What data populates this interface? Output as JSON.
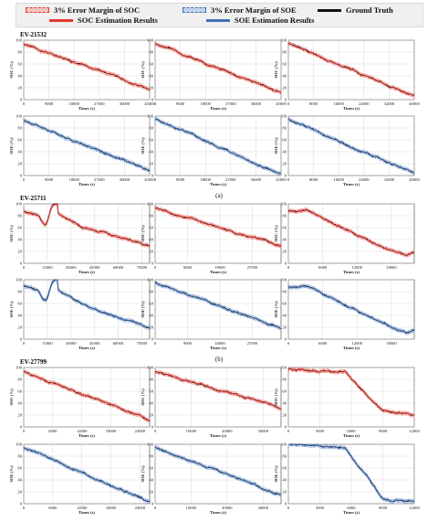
{
  "legend": {
    "soc_margin": "3% Error Margin of SOC",
    "soe_margin": "3% Error Margin of SOE",
    "ground_truth": "Ground Truth",
    "soc_est": "SOC Estimation Results",
    "soe_est": "SOE Estimation Results"
  },
  "colors": {
    "soc": "#e8372d",
    "soe": "#3f6fb5",
    "truth": "#111111",
    "soc_band": "#f6c3bf",
    "soe_band": "#c4d4ec"
  },
  "groups": [
    {
      "label": "EV-21532",
      "sublabel": "(a)"
    },
    {
      "label": "EV-25711",
      "sublabel": "(b)"
    },
    {
      "label": "EV-27799",
      "sublabel": ""
    }
  ],
  "chart_data": [
    {
      "type": "line",
      "group": 0,
      "row": "SOC",
      "ylabel": "SOC (%)",
      "xlabel": "Times (s)",
      "ylim": [
        0,
        100
      ],
      "yticks": [
        0,
        20,
        40,
        60,
        80,
        100
      ],
      "xticks": [
        0,
        9000,
        18000,
        27000,
        36000,
        45000
      ],
      "xticklabels": [
        "0",
        "9000",
        "18000",
        "27000",
        "36000",
        "45000"
      ],
      "xmax": 45000,
      "shape": "linear",
      "start": 93,
      "end": 18,
      "seed": 1
    },
    {
      "type": "line",
      "group": 0,
      "row": "SOC",
      "ylabel": "SOC (%)",
      "xlabel": "Times (s)",
      "ylim": [
        0,
        100
      ],
      "yticks": [
        0,
        20,
        40,
        60,
        80,
        100
      ],
      "xticks": [
        0,
        9000,
        18000,
        27000,
        36000,
        45000
      ],
      "xticklabels": [
        "0",
        "9000",
        "18000",
        "27000",
        "36000",
        "45000"
      ],
      "xmax": 45000,
      "shape": "linear",
      "start": 95,
      "end": 12,
      "seed": 2
    },
    {
      "type": "line",
      "group": 0,
      "row": "SOC",
      "ylabel": "SOC (%)",
      "xlabel": "Times (s)",
      "ylim": [
        0,
        100
      ],
      "yticks": [
        0,
        20,
        40,
        60,
        80,
        100
      ],
      "xticks": [
        0,
        8000,
        16000,
        24000,
        32000,
        40000
      ],
      "xticklabels": [
        "0",
        "8000",
        "16000",
        "24000",
        "32000",
        "40000"
      ],
      "xmax": 40000,
      "shape": "linear",
      "start": 95,
      "end": 5,
      "seed": 3
    },
    {
      "type": "line",
      "group": 0,
      "row": "SOE",
      "ylabel": "SOE (%)",
      "xlabel": "Times (s)",
      "ylim": [
        0,
        100
      ],
      "yticks": [
        0,
        20,
        40,
        60,
        80,
        100
      ],
      "xticks": [
        0,
        9000,
        18000,
        27000,
        36000,
        45000
      ],
      "xticklabels": [
        "0",
        "9000",
        "18000",
        "27000",
        "36000",
        "45000"
      ],
      "xmax": 45000,
      "shape": "linear",
      "start": 93,
      "end": 8,
      "seed": 4
    },
    {
      "type": "line",
      "group": 0,
      "row": "SOE",
      "ylabel": "SOE (%)",
      "xlabel": "Times (s)",
      "ylim": [
        0,
        100
      ],
      "yticks": [
        0,
        20,
        40,
        60,
        80,
        100
      ],
      "xticks": [
        0,
        9000,
        18000,
        27000,
        36000,
        45000
      ],
      "xticklabels": [
        "0",
        "9000",
        "18000",
        "27000",
        "36000",
        "45000"
      ],
      "xmax": 45000,
      "shape": "linear",
      "start": 95,
      "end": 2,
      "seed": 5
    },
    {
      "type": "line",
      "group": 0,
      "row": "SOE",
      "ylabel": "SOE (%)",
      "xlabel": "Times (s)",
      "ylim": [
        0,
        100
      ],
      "yticks": [
        0,
        20,
        40,
        60,
        80,
        100
      ],
      "xticks": [
        0,
        8000,
        16000,
        24000,
        32000,
        40000
      ],
      "xticklabels": [
        "0",
        "8000",
        "16000",
        "24000",
        "32000",
        "40000"
      ],
      "xmax": 40000,
      "shape": "linear",
      "start": 95,
      "end": 3,
      "seed": 6
    },
    {
      "type": "line",
      "group": 1,
      "row": "SOC",
      "ylabel": "SOC (%)",
      "xlabel": "Times (s)",
      "ylim": [
        0,
        100
      ],
      "yticks": [
        0,
        20,
        40,
        60,
        80,
        100
      ],
      "xticks": [
        0,
        15000,
        30000,
        45000,
        60000,
        75000
      ],
      "xticklabels": [
        "0",
        "15000",
        "30000",
        "45000",
        "60000",
        "75000"
      ],
      "xmax": 80000,
      "shape": "bump",
      "start": 88,
      "end": 30,
      "seed": 7
    },
    {
      "type": "line",
      "group": 1,
      "row": "SOC",
      "ylabel": "SOC (%)",
      "xlabel": "Times (s)",
      "ylim": [
        0,
        100
      ],
      "yticks": [
        0,
        20,
        40,
        60,
        80,
        100
      ],
      "xticks": [
        0,
        9000,
        18000,
        27000
      ],
      "xticklabels": [
        "0",
        "9000",
        "18000",
        "27000"
      ],
      "xmax": 35000,
      "shape": "linear",
      "start": 93,
      "end": 28,
      "seed": 8
    },
    {
      "type": "line",
      "group": 1,
      "row": "SOC",
      "ylabel": "SOC (%)",
      "xlabel": "Times (s)",
      "ylim": [
        0,
        100
      ],
      "yticks": [
        0,
        20,
        40,
        60,
        80,
        100
      ],
      "xticks": [
        0,
        6000,
        12000,
        18000
      ],
      "xticklabels": [
        "0",
        "6000",
        "12000",
        "18000"
      ],
      "xmax": 22000,
      "shape": "dip",
      "start": 88,
      "end": 10,
      "seed": 9
    },
    {
      "type": "line",
      "group": 1,
      "row": "SOE",
      "ylabel": "SOE (%)",
      "xlabel": "Times (s)",
      "ylim": [
        0,
        100
      ],
      "yticks": [
        0,
        20,
        40,
        60,
        80,
        100
      ],
      "xticks": [
        0,
        15000,
        30000,
        45000,
        60000,
        75000
      ],
      "xticklabels": [
        "0",
        "15000",
        "30000",
        "45000",
        "60000",
        "75000"
      ],
      "xmax": 80000,
      "shape": "bump",
      "start": 90,
      "end": 20,
      "seed": 10
    },
    {
      "type": "line",
      "group": 1,
      "row": "SOE",
      "ylabel": "SOE (%)",
      "xlabel": "Times (s)",
      "ylim": [
        0,
        100
      ],
      "yticks": [
        0,
        20,
        40,
        60,
        80,
        100
      ],
      "xticks": [
        0,
        9000,
        18000,
        27000
      ],
      "xticklabels": [
        "0",
        "9000",
        "18000",
        "27000"
      ],
      "xmax": 35000,
      "shape": "linear",
      "start": 95,
      "end": 18,
      "seed": 11
    },
    {
      "type": "line",
      "group": 1,
      "row": "SOE",
      "ylabel": "SOE (%)",
      "xlabel": "Times (s)",
      "ylim": [
        0,
        100
      ],
      "yticks": [
        0,
        20,
        40,
        60,
        80,
        100
      ],
      "xticks": [
        0,
        6000,
        12000,
        18000
      ],
      "xticklabels": [
        "0",
        "6000",
        "12000",
        "18000"
      ],
      "xmax": 22000,
      "shape": "dip",
      "start": 88,
      "end": 5,
      "seed": 12
    },
    {
      "type": "line",
      "group": 2,
      "row": "SOC",
      "ylabel": "SOC (%)",
      "xlabel": "Times (s)",
      "ylim": [
        0,
        100
      ],
      "yticks": [
        0,
        20,
        40,
        60,
        80,
        100
      ],
      "xticks": [
        0,
        6000,
        12000,
        18000,
        24000
      ],
      "xticklabels": [
        "0",
        "6000",
        "12000",
        "18000",
        "24000"
      ],
      "xmax": 26000,
      "shape": "linear",
      "start": 93,
      "end": 12,
      "seed": 13
    },
    {
      "type": "line",
      "group": 2,
      "row": "SOC",
      "ylabel": "SOC (%)",
      "xlabel": "Times (s)",
      "ylim": [
        0,
        100
      ],
      "yticks": [
        0,
        20,
        40,
        60,
        80,
        100
      ],
      "xticks": [
        0,
        10000,
        20000,
        30000
      ],
      "xticklabels": [
        "0",
        "10000",
        "20000",
        "30000"
      ],
      "xmax": 35000,
      "shape": "linear",
      "start": 93,
      "end": 32,
      "seed": 14
    },
    {
      "type": "line",
      "group": 2,
      "row": "SOC",
      "ylabel": "SOC (%)",
      "xlabel": "Times (s)",
      "ylim": [
        0,
        100
      ],
      "yticks": [
        0,
        20,
        40,
        60,
        80,
        100
      ],
      "xticks": [
        0,
        3000,
        6000,
        9000,
        12000
      ],
      "xticklabels": [
        "0",
        "3000",
        "6000",
        "9000",
        "12000"
      ],
      "xmax": 12000,
      "shape": "cliff",
      "start": 98,
      "end": 20,
      "seed": 15
    },
    {
      "type": "line",
      "group": 2,
      "row": "SOE",
      "ylabel": "SOE (%)",
      "xlabel": "Times (s)",
      "ylim": [
        0,
        100
      ],
      "yticks": [
        0,
        20,
        40,
        60,
        80,
        100
      ],
      "xticks": [
        0,
        6000,
        12000,
        18000,
        24000
      ],
      "xticklabels": [
        "0",
        "6000",
        "12000",
        "18000",
        "24000"
      ],
      "xmax": 26000,
      "shape": "linear",
      "start": 95,
      "end": 3,
      "seed": 16
    },
    {
      "type": "line",
      "group": 2,
      "row": "SOE",
      "ylabel": "SOE (%)",
      "xlabel": "Times (s)",
      "ylim": [
        0,
        100
      ],
      "yticks": [
        0,
        20,
        40,
        60,
        80,
        100
      ],
      "xticks": [
        0,
        10000,
        20000,
        30000
      ],
      "xticklabels": [
        "0",
        "10000",
        "20000",
        "30000"
      ],
      "xmax": 35000,
      "shape": "linear",
      "start": 95,
      "end": 15,
      "seed": 17
    },
    {
      "type": "line",
      "group": 2,
      "row": "SOE",
      "ylabel": "SOE (%)",
      "xlabel": "Times (s)",
      "ylim": [
        0,
        100
      ],
      "yticks": [
        0,
        20,
        40,
        60,
        80,
        100
      ],
      "xticks": [
        0,
        3000,
        6000,
        9000,
        12000
      ],
      "xticklabels": [
        "0",
        "3000",
        "6000",
        "9000",
        "12000"
      ],
      "xmax": 12000,
      "shape": "cliff",
      "start": 100,
      "end": 3,
      "seed": 18
    }
  ]
}
